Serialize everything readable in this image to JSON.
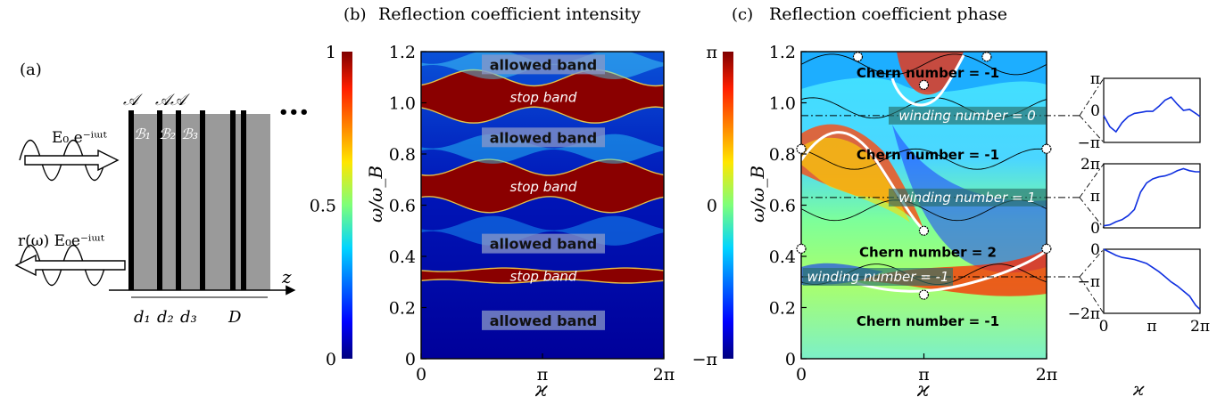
{
  "panel_a": {
    "label": "(a)",
    "incident": "E₀ e⁻ⁱᵚᵗ",
    "reflected": "r(ω) E₀e⁻ⁱᵚᵗ",
    "layer_A_labels": [
      "𝒜",
      "𝒜𝒜"
    ],
    "layer_B_labels": [
      "ℬ₁",
      "ℬ₂",
      "ℬ₃"
    ],
    "z_label": "z",
    "ellipsis": "•••",
    "dims": [
      "d₁",
      "d₂",
      "d₃",
      "D"
    ]
  },
  "chart_data": [
    {
      "type": "heatmap",
      "panel_label": "(b)",
      "title": "Reflection coefficient intensity",
      "xlabel": "ϰ",
      "ylabel": "ω/ω_B",
      "xlim": [
        0,
        6.2832
      ],
      "ylim": [
        0,
        1.2
      ],
      "x_ticks": [
        "0",
        "π",
        "2π"
      ],
      "y_ticks": [
        "0",
        "0.2",
        "0.4",
        "0.6",
        "0.8",
        "1.0",
        "1.2"
      ],
      "colorbar": {
        "min": 0,
        "max": 1,
        "ticks": [
          "0",
          "0.5",
          "1"
        ]
      },
      "regions": [
        {
          "label": "allowed band",
          "kind": "allowed",
          "y_range": [
            0.0,
            0.3
          ]
        },
        {
          "label": "stop band",
          "kind": "stop",
          "y_range": [
            0.3,
            0.35
          ]
        },
        {
          "label": "allowed band",
          "kind": "allowed",
          "y_range": [
            0.35,
            0.55
          ]
        },
        {
          "label": "stop band",
          "kind": "stop",
          "y_range": [
            0.6,
            0.75
          ]
        },
        {
          "label": "allowed band",
          "kind": "allowed",
          "y_range": [
            0.78,
            0.95
          ]
        },
        {
          "label": "stop band",
          "kind": "stop",
          "y_range": [
            0.95,
            1.1
          ]
        },
        {
          "label": "allowed band",
          "kind": "allowed",
          "y_range": [
            1.1,
            1.2
          ]
        }
      ]
    },
    {
      "type": "heatmap",
      "panel_label": "(c)",
      "title": "Reflection coefficient phase",
      "xlabel": "ϰ",
      "ylabel": "ω/ω_B",
      "xlim": [
        0,
        6.2832
      ],
      "ylim": [
        0,
        1.2
      ],
      "x_ticks": [
        "0",
        "π",
        "2π"
      ],
      "y_ticks": [
        "0",
        "0.2",
        "0.4",
        "0.6",
        "0.8",
        "1.0",
        "1.2"
      ],
      "colorbar": {
        "min": -3.1416,
        "max": 3.1416,
        "ticks": [
          "−π",
          "0",
          "π"
        ]
      },
      "chern_labels": [
        {
          "text": "Chern number = -1",
          "y": 1.12
        },
        {
          "text": "Chern number = -1",
          "y": 0.8
        },
        {
          "text": "Chern number = 2",
          "y": 0.42
        },
        {
          "text": "Chern number = -1",
          "y": 0.15
        }
      ],
      "winding_lines": [
        {
          "text": "winding number = 0",
          "y": 0.95
        },
        {
          "text": "winding number = 1",
          "y": 0.63
        },
        {
          "text": "winding number = -1",
          "y": 0.32
        }
      ],
      "singular_points": [
        [
          1.45,
          1.18
        ],
        [
          3.14,
          1.07
        ],
        [
          4.75,
          1.18
        ],
        [
          0,
          0.82
        ],
        [
          6.28,
          0.82
        ],
        [
          3.14,
          0.5
        ],
        [
          0,
          0.43
        ],
        [
          6.28,
          0.43
        ],
        [
          3.14,
          0.25
        ]
      ]
    },
    {
      "type": "line",
      "name": "phase vs ϰ at winding number = 0",
      "x_ticks": [],
      "y_ticks": [
        "π",
        "0",
        "−π"
      ],
      "ylim": [
        -3.1416,
        3.1416
      ],
      "x": [
        0,
        0.4,
        0.8,
        1.2,
        1.6,
        2.0,
        2.4,
        2.8,
        3.2,
        3.6,
        4.0,
        4.4,
        4.8,
        5.2,
        5.6,
        6.0,
        6.28
      ],
      "y": [
        -0.5,
        -1.6,
        -2.1,
        -1.2,
        -0.6,
        -0.3,
        -0.2,
        -0.1,
        -0.1,
        0.4,
        1.0,
        1.3,
        0.6,
        0.0,
        0.1,
        -0.3,
        -0.6
      ]
    },
    {
      "type": "line",
      "name": "phase vs ϰ at winding number = 1",
      "x_ticks": [],
      "y_ticks": [
        "2π",
        "π",
        "0"
      ],
      "ylim": [
        0,
        6.2832
      ],
      "x": [
        0,
        0.4,
        0.8,
        1.2,
        1.6,
        2.0,
        2.4,
        2.8,
        3.2,
        3.6,
        4.0,
        4.4,
        4.8,
        5.2,
        5.6,
        6.0,
        6.28
      ],
      "y": [
        0.2,
        0.3,
        0.6,
        0.8,
        1.2,
        1.8,
        3.5,
        4.4,
        4.8,
        5.0,
        5.1,
        5.3,
        5.6,
        5.8,
        5.6,
        5.5,
        5.5
      ]
    },
    {
      "type": "line",
      "name": "phase vs ϰ at winding number = -1",
      "x_ticks": [
        "0",
        "π",
        "2π"
      ],
      "xlabel": "ϰ",
      "y_ticks": [
        "0",
        "−π",
        "−2π"
      ],
      "ylim": [
        -6.2832,
        0
      ],
      "x": [
        0,
        0.4,
        0.8,
        1.2,
        1.6,
        2.0,
        2.4,
        2.8,
        3.2,
        3.6,
        4.0,
        4.4,
        4.8,
        5.2,
        5.6,
        6.0,
        6.28
      ],
      "y": [
        0.0,
        -0.3,
        -0.6,
        -0.8,
        -0.9,
        -1.0,
        -1.2,
        -1.4,
        -1.8,
        -2.2,
        -2.7,
        -3.2,
        -3.6,
        -4.1,
        -4.6,
        -5.5,
        -5.9
      ]
    }
  ]
}
